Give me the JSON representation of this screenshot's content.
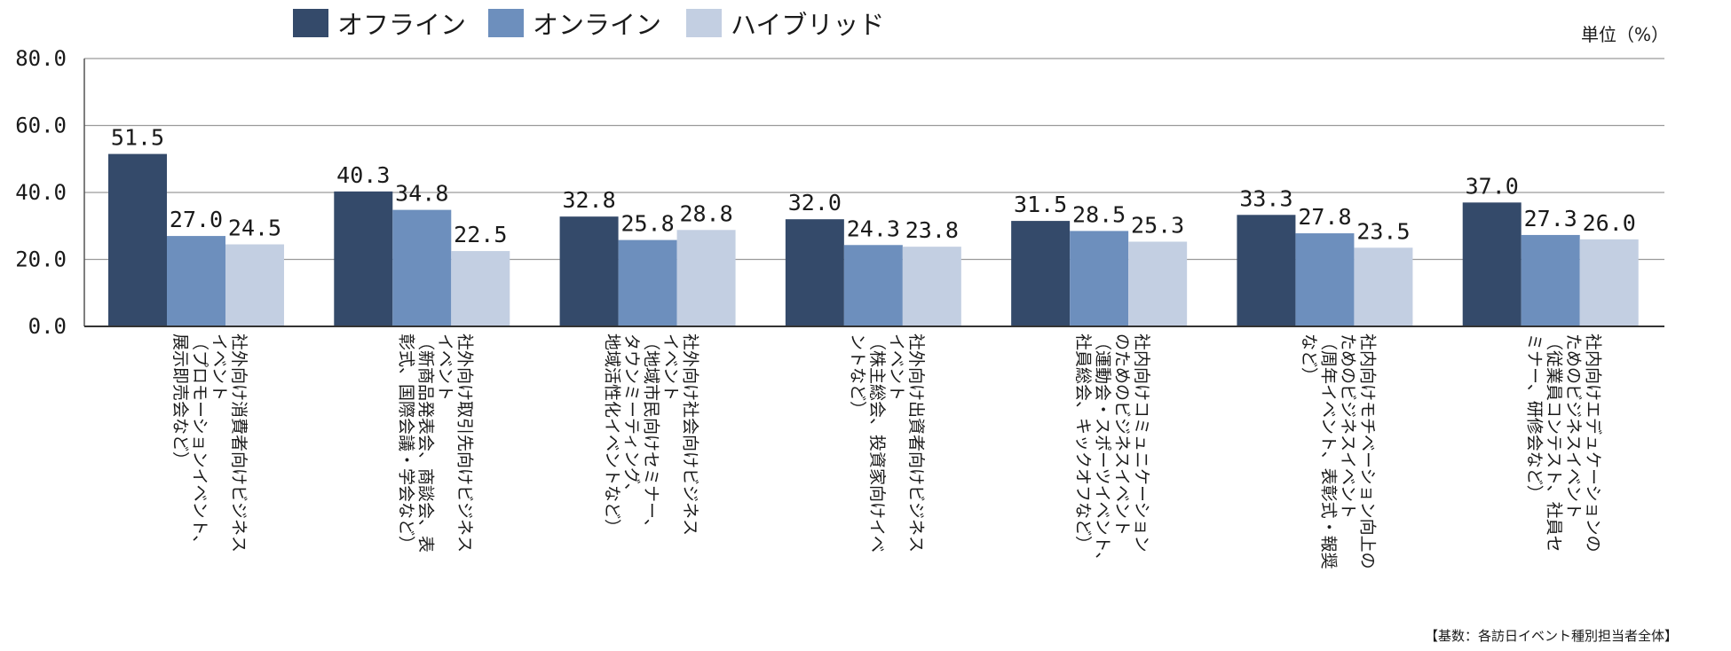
{
  "chart_data": {
    "type": "bar",
    "title": "",
    "unit_label": "単位（%）",
    "base_note": "【基数：各訪日イベント種別担当者全体】",
    "ylim": [
      0,
      80
    ],
    "yticks": [
      "0.0",
      "20.0",
      "40.0",
      "60.0",
      "80.0"
    ],
    "legend_position": "top-left",
    "categories": [
      [
        "社外向け消費者向けビジネス",
        "イベント",
        "（プロモーションイベント、",
        "展示即売会など）"
      ],
      [
        "社外向け取引先向けビジネス",
        "イベント",
        "（新商品発表会、商談会、表",
        "彰式、国際会議・学会など）"
      ],
      [
        "社外向け社会向けビジネス",
        "イベント",
        "（地域市民向けセミナー、",
        "タウンミーティング、",
        "地域活性化イベントなど）"
      ],
      [
        "社外向け出資者向けビジネス",
        "イベント",
        "（株主総会、投資家向けイベ",
        "ントなど）"
      ],
      [
        "社内向けコミュニケーション",
        "のためのビジネスイベント",
        "（運動会・スポーツイベント、",
        "社員総会、キックオフなど）"
      ],
      [
        "社内向けモチベーション向上の",
        "ためのビジネスイベント",
        "（周年イベント、表彰式・報奨",
        "など）"
      ],
      [
        "社内向けエデュケーションの",
        "ためのビジネスイベント",
        "（従業員コンテスト、社員セ",
        "ミナー、研修会など）"
      ]
    ],
    "series": [
      {
        "name": "オフライン",
        "color": "#344a6a",
        "values": [
          51.5,
          40.3,
          32.8,
          32.0,
          31.5,
          33.3,
          37.0
        ],
        "labels": [
          "51.5",
          "40.3",
          "32.8",
          "32.0",
          "31.5",
          "33.3",
          "37.0"
        ]
      },
      {
        "name": "オンライン",
        "color": "#6d8fbd",
        "values": [
          27.0,
          34.8,
          25.8,
          24.3,
          28.5,
          27.8,
          27.3
        ],
        "labels": [
          "27.0",
          "34.8",
          "25.8",
          "24.3",
          "28.5",
          "27.8",
          "27.3"
        ]
      },
      {
        "name": "ハイブリッド",
        "color": "#c3cfe2",
        "values": [
          24.5,
          22.5,
          28.8,
          23.8,
          25.3,
          23.5,
          26.0
        ],
        "labels": [
          "24.5",
          "22.5",
          "28.8",
          "23.8",
          "25.3",
          "23.5",
          "26.0"
        ]
      }
    ]
  }
}
